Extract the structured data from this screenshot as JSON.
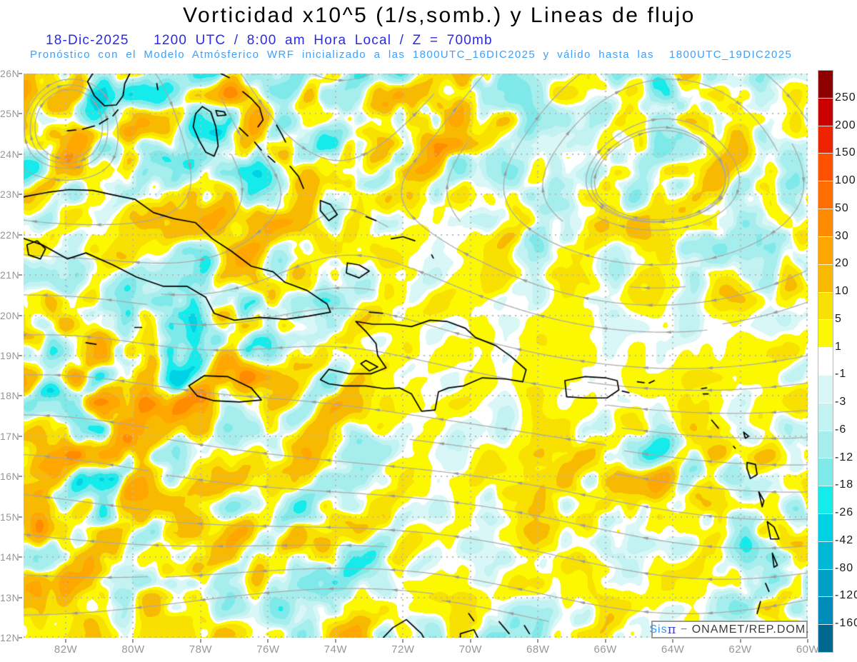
{
  "header": {
    "title": "Vorticidad x10^5 (1/s,somb.) y Lineas de flujo",
    "date_line": "18-Dic-2025   1200 UTC / 8:00 am Hora Local / Z = 700mb",
    "model_line": "Pronóstico con el Modelo Atmósferico WRF inicializado a las 1800UTC_16DIC2025 y válido hasta las  1800UTC_19DIC2025"
  },
  "attribution": {
    "prefix": "Sis",
    "pi": "π",
    "separator": " − ",
    "org": "ONAMET/REP.DOM."
  },
  "axes": {
    "lat_labels": [
      "26N",
      "25N",
      "24N",
      "23N",
      "22N",
      "21N",
      "20N",
      "19N",
      "18N",
      "17N",
      "16N",
      "15N",
      "14N",
      "13N",
      "12N"
    ],
    "lon_labels": [
      "82W",
      "80W",
      "78W",
      "76W",
      "74W",
      "72W",
      "70W",
      "68W",
      "66W",
      "64W",
      "62W",
      "60W"
    ]
  },
  "colorbar": {
    "labels": [
      "250",
      "200",
      "150",
      "100",
      "50",
      "30",
      "20",
      "10",
      "5",
      "1",
      "-1",
      "-3",
      "-6",
      "-12",
      "-18",
      "-26",
      "-42",
      "-80",
      "-120",
      "-160"
    ],
    "colors": [
      "#8e0000",
      "#c80000",
      "#ee2400",
      "#ff5200",
      "#ff6e00",
      "#ff8c00",
      "#ffa600",
      "#f8ba00",
      "#f8e000",
      "#fcf800",
      "#ffffff",
      "#d9f7f7",
      "#c2f2f2",
      "#a6eeee",
      "#7fe9e9",
      "#16ebeb",
      "#00d2e6",
      "#00b7d6",
      "#00a0c6",
      "#008cba",
      "#006890"
    ]
  },
  "colors": {
    "title_text": "#000000",
    "date_text": "#2b2be0",
    "model_text": "#38a0ff",
    "axis_label": "#979797",
    "grid_dot": "#b8b8b8",
    "streamline": "#a9a9a9",
    "arrowhead": "#9b9b9b",
    "coastline": "#000000"
  },
  "chart_data": {
    "type": "heatmap",
    "title": "Vorticidad x10^5 (1/s,somb.) y Lineas de flujo",
    "subtitle": "18-Dic-2025 1200 UTC / 8:00 am Hora Local / Z = 700mb",
    "forecast_note": "Pronóstico con el Modelo Atmósferico WRF inicializado a las 1800UTC_16DIC2025 y válido hasta las 1800UTC_19DIC2025",
    "field": "vorticidad relativa x10^5 (1/s), sombreada",
    "overlay": "lineas de flujo (streamlines) con flechas",
    "level": "700mb",
    "lat_range": [
      12,
      26
    ],
    "lon_range_west": [
      83.25,
      60.0
    ],
    "graticule": {
      "lat_step_deg": 1,
      "lon_step_deg": 2,
      "style": "dotted"
    },
    "contour_levels": [
      250,
      200,
      150,
      100,
      50,
      30,
      20,
      10,
      5,
      1,
      -1,
      -3,
      -6,
      -12,
      -18,
      -26,
      -42,
      -80,
      -120,
      -160
    ],
    "palette_pos_to_neg": [
      "#8e0000",
      "#c80000",
      "#ee2400",
      "#ff5200",
      "#ff6e00",
      "#ff8c00",
      "#ffa600",
      "#f8ba00",
      "#f8e000",
      "#fcf800",
      "#ffffff",
      "#d9f7f7",
      "#c2f2f2",
      "#a6eeee",
      "#7fe9e9",
      "#16ebeb",
      "#00d2e6",
      "#00b7d6",
      "#00a0c6",
      "#008cba",
      "#006890"
    ],
    "legend_position": "right",
    "coastlines": {
      "florida": [
        [
          -81.2,
          26.0
        ],
        [
          -81.35,
          25.8
        ],
        [
          -81.15,
          25.45
        ],
        [
          -80.85,
          25.2
        ],
        [
          -80.5,
          25.22
        ],
        [
          -80.3,
          25.45
        ],
        [
          -80.25,
          25.75
        ],
        [
          -80.1,
          26.0
        ]
      ],
      "keys1": [
        [
          -80.45,
          25.1
        ],
        [
          -80.6,
          24.95
        ]
      ],
      "keys2": [
        [
          -80.75,
          24.88
        ],
        [
          -81.0,
          24.75
        ]
      ],
      "keys3": [
        [
          -81.15,
          24.7
        ],
        [
          -81.5,
          24.62
        ]
      ],
      "keys4": [
        [
          -81.7,
          24.6
        ],
        [
          -81.95,
          24.58
        ]
      ],
      "bimini": [
        [
          -79.3,
          25.75
        ],
        [
          -79.27,
          25.6
        ]
      ],
      "abaco": [
        [
          -77.4,
          26.0
        ],
        [
          -77.15,
          25.9
        ]
      ],
      "andros": [
        [
          -77.95,
          25.18
        ],
        [
          -77.7,
          25.05
        ],
        [
          -77.55,
          24.68
        ],
        [
          -77.48,
          24.2
        ],
        [
          -77.6,
          23.95
        ],
        [
          -77.85,
          24.05
        ],
        [
          -78.05,
          24.35
        ],
        [
          -78.22,
          24.68
        ],
        [
          -78.15,
          25.0
        ],
        [
          -77.95,
          25.18
        ]
      ],
      "new_providence": [
        [
          -77.55,
          25.08
        ],
        [
          -77.3,
          25.05
        ],
        [
          -77.25,
          24.97
        ],
        [
          -77.5,
          24.95
        ],
        [
          -77.55,
          25.08
        ]
      ],
      "eleuthera": [
        [
          -76.75,
          25.55
        ],
        [
          -76.5,
          25.38
        ],
        [
          -76.25,
          25.15
        ],
        [
          -76.15,
          24.85
        ],
        [
          -76.3,
          24.68
        ]
      ],
      "cat_island": [
        [
          -75.75,
          24.72
        ],
        [
          -75.6,
          24.5
        ],
        [
          -75.48,
          24.3
        ]
      ],
      "exuma1": [
        [
          -76.85,
          24.65
        ],
        [
          -76.6,
          24.45
        ]
      ],
      "exuma2": [
        [
          -76.4,
          24.3
        ],
        [
          -76.2,
          24.1
        ]
      ],
      "exuma3": [
        [
          -76.0,
          23.95
        ],
        [
          -75.8,
          23.8
        ]
      ],
      "long_island": [
        [
          -75.35,
          23.7
        ],
        [
          -75.1,
          23.45
        ],
        [
          -74.95,
          23.15
        ]
      ],
      "crooked": [
        [
          -74.45,
          22.85
        ],
        [
          -74.15,
          22.75
        ],
        [
          -73.95,
          22.5
        ],
        [
          -74.2,
          22.35
        ],
        [
          -74.45,
          22.6
        ],
        [
          -74.45,
          22.85
        ]
      ],
      "mayaguana": [
        [
          -73.1,
          22.45
        ],
        [
          -72.8,
          22.35
        ]
      ],
      "inagua": [
        [
          -73.65,
          21.3
        ],
        [
          -73.3,
          21.25
        ],
        [
          -73.0,
          21.1
        ],
        [
          -73.3,
          20.93
        ],
        [
          -73.68,
          21.05
        ],
        [
          -73.65,
          21.3
        ]
      ],
      "caicos": [
        [
          -72.35,
          21.9
        ],
        [
          -72.0,
          21.95
        ],
        [
          -71.65,
          21.85
        ]
      ],
      "turks": [
        [
          -71.15,
          21.5
        ],
        [
          -71.1,
          21.42
        ]
      ],
      "cuba": [
        [
          -84.9,
          21.85
        ],
        [
          -84.4,
          22.1
        ],
        [
          -83.95,
          22.7
        ],
        [
          -83.2,
          22.95
        ],
        [
          -82.55,
          23.05
        ],
        [
          -81.9,
          23.12
        ],
        [
          -81.2,
          23.1
        ],
        [
          -80.55,
          22.98
        ],
        [
          -79.95,
          22.88
        ],
        [
          -79.4,
          22.55
        ],
        [
          -78.8,
          22.4
        ],
        [
          -78.15,
          22.3
        ],
        [
          -77.65,
          21.9
        ],
        [
          -77.1,
          21.6
        ],
        [
          -76.5,
          21.22
        ],
        [
          -75.85,
          21.08
        ],
        [
          -75.5,
          20.82
        ],
        [
          -74.85,
          20.62
        ],
        [
          -74.25,
          20.28
        ],
        [
          -74.15,
          20.08
        ],
        [
          -74.8,
          19.98
        ],
        [
          -75.5,
          19.9
        ],
        [
          -76.25,
          19.95
        ],
        [
          -77.0,
          19.88
        ],
        [
          -77.6,
          20.05
        ],
        [
          -77.85,
          20.45
        ],
        [
          -78.4,
          20.72
        ],
        [
          -79.1,
          20.72
        ],
        [
          -79.9,
          20.95
        ],
        [
          -80.6,
          21.25
        ],
        [
          -81.4,
          21.55
        ],
        [
          -81.95,
          21.4
        ],
        [
          -82.7,
          21.75
        ],
        [
          -83.4,
          21.95
        ],
        [
          -84.1,
          21.85
        ],
        [
          -84.9,
          21.85
        ]
      ],
      "isla_juventud": [
        [
          -83.15,
          21.75
        ],
        [
          -82.85,
          21.85
        ],
        [
          -82.6,
          21.65
        ],
        [
          -82.75,
          21.4
        ],
        [
          -83.1,
          21.5
        ],
        [
          -83.15,
          21.75
        ]
      ],
      "grand_cayman": [
        [
          -81.4,
          19.32
        ],
        [
          -81.1,
          19.28
        ]
      ],
      "cayman_brac": [
        [
          -79.95,
          19.7
        ],
        [
          -79.75,
          19.7
        ]
      ],
      "jamaica": [
        [
          -78.35,
          18.25
        ],
        [
          -77.9,
          18.5
        ],
        [
          -77.2,
          18.48
        ],
        [
          -76.5,
          18.2
        ],
        [
          -76.2,
          17.9
        ],
        [
          -76.85,
          17.85
        ],
        [
          -77.6,
          17.88
        ],
        [
          -78.1,
          18.0
        ],
        [
          -78.35,
          18.25
        ]
      ],
      "hispaniola": [
        [
          -73.4,
          19.85
        ],
        [
          -72.9,
          19.78
        ],
        [
          -72.3,
          19.78
        ],
        [
          -71.75,
          19.72
        ],
        [
          -71.2,
          19.88
        ],
        [
          -70.7,
          19.85
        ],
        [
          -70.15,
          19.68
        ],
        [
          -69.85,
          19.45
        ],
        [
          -69.25,
          19.25
        ],
        [
          -68.8,
          18.98
        ],
        [
          -68.35,
          18.65
        ],
        [
          -68.45,
          18.35
        ],
        [
          -68.95,
          18.42
        ],
        [
          -69.65,
          18.45
        ],
        [
          -70.2,
          18.25
        ],
        [
          -70.65,
          18.2
        ],
        [
          -70.95,
          18.1
        ],
        [
          -71.05,
          17.65
        ],
        [
          -71.45,
          17.62
        ],
        [
          -71.75,
          18.05
        ],
        [
          -72.1,
          18.2
        ],
        [
          -72.55,
          18.18
        ],
        [
          -73.1,
          18.25
        ],
        [
          -73.75,
          18.25
        ],
        [
          -74.2,
          18.3
        ],
        [
          -74.45,
          18.4
        ],
        [
          -74.2,
          18.66
        ],
        [
          -73.6,
          18.55
        ],
        [
          -72.95,
          18.55
        ],
        [
          -72.5,
          18.7
        ],
        [
          -72.75,
          19.0
        ],
        [
          -72.8,
          19.3
        ],
        [
          -73.1,
          19.6
        ],
        [
          -73.4,
          19.85
        ]
      ],
      "gonave": [
        [
          -73.1,
          18.88
        ],
        [
          -72.75,
          18.72
        ],
        [
          -73.0,
          18.62
        ],
        [
          -73.25,
          18.8
        ],
        [
          -73.1,
          18.88
        ]
      ],
      "tortue": [
        [
          -73.0,
          20.08
        ],
        [
          -72.6,
          20.05
        ]
      ],
      "puerto_rico": [
        [
          -67.2,
          18.38
        ],
        [
          -66.6,
          18.48
        ],
        [
          -66.0,
          18.45
        ],
        [
          -65.65,
          18.38
        ],
        [
          -65.6,
          18.15
        ],
        [
          -65.95,
          17.95
        ],
        [
          -66.6,
          17.95
        ],
        [
          -67.15,
          17.98
        ],
        [
          -67.2,
          18.38
        ]
      ],
      "vieques": [
        [
          -65.5,
          18.12
        ],
        [
          -65.3,
          18.08
        ]
      ],
      "virgin1": [
        [
          -65.05,
          18.35
        ],
        [
          -64.85,
          18.33
        ]
      ],
      "virgin2": [
        [
          -64.7,
          18.32
        ],
        [
          -64.55,
          18.38
        ]
      ],
      "stmartin1": [
        [
          -63.15,
          18.18
        ],
        [
          -63.0,
          18.2
        ]
      ],
      "stmartin2": [
        [
          -63.1,
          18.05
        ],
        [
          -62.95,
          18.05
        ]
      ],
      "stkitts": [
        [
          -62.85,
          17.4
        ],
        [
          -62.65,
          17.2
        ]
      ],
      "antigua": [
        [
          -61.9,
          17.1
        ],
        [
          -61.75,
          17.0
        ],
        [
          -61.85,
          16.95
        ],
        [
          -61.9,
          17.1
        ]
      ],
      "montserrat": [
        [
          -62.2,
          16.75
        ],
        [
          -62.15,
          16.7
        ]
      ],
      "guadeloupe": [
        [
          -61.8,
          16.35
        ],
        [
          -61.55,
          16.3
        ],
        [
          -61.5,
          16.05
        ],
        [
          -61.7,
          15.95
        ],
        [
          -61.8,
          16.2
        ],
        [
          -61.8,
          16.35
        ]
      ],
      "dominica": [
        [
          -61.45,
          15.62
        ],
        [
          -61.3,
          15.4
        ],
        [
          -61.35,
          15.25
        ],
        [
          -61.45,
          15.62
        ]
      ],
      "martinique": [
        [
          -61.2,
          14.88
        ],
        [
          -61.0,
          14.75
        ],
        [
          -60.85,
          14.45
        ],
        [
          -61.1,
          14.45
        ],
        [
          -61.2,
          14.88
        ]
      ],
      "stlucia": [
        [
          -61.05,
          14.1
        ],
        [
          -60.9,
          13.8
        ],
        [
          -61.0,
          13.75
        ],
        [
          -61.05,
          14.1
        ]
      ],
      "stvincent": [
        [
          -61.25,
          13.35
        ],
        [
          -61.15,
          13.15
        ]
      ],
      "grenadines": [
        [
          -61.4,
          12.9
        ],
        [
          -61.5,
          12.6
        ]
      ],
      "grenada": [
        [
          -61.75,
          12.2
        ],
        [
          -61.6,
          12.0
        ]
      ],
      "aruba": [
        [
          -70.05,
          12.6
        ],
        [
          -69.9,
          12.42
        ]
      ],
      "curacao": [
        [
          -69.15,
          12.4
        ],
        [
          -68.85,
          12.1
        ]
      ],
      "bonaire": [
        [
          -68.4,
          12.3
        ],
        [
          -68.25,
          12.1
        ]
      ],
      "guajira": [
        [
          -72.7,
          11.9
        ],
        [
          -72.3,
          12.25
        ],
        [
          -71.9,
          12.45
        ],
        [
          -71.45,
          12.1
        ],
        [
          -71.3,
          11.85
        ]
      ],
      "paraguana": [
        [
          -70.3,
          11.8
        ],
        [
          -70.3,
          12.1
        ],
        [
          -69.9,
          12.2
        ],
        [
          -69.75,
          11.95
        ]
      ]
    }
  }
}
